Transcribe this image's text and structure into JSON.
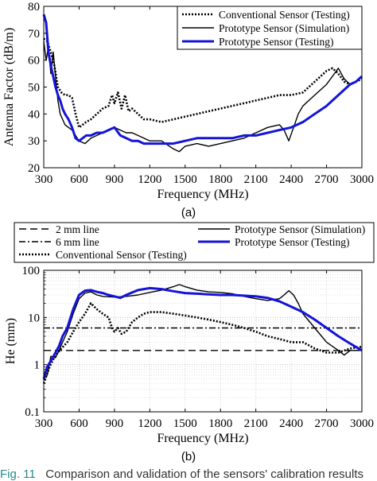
{
  "figure": {
    "sublabel_a": "(a)",
    "sublabel_b": "(b)",
    "caption_label": "Fig. 11",
    "caption_text": "Comparison and validation of the sensors' calibration results"
  },
  "colors": {
    "testing_prototype": "#1414d8",
    "other": "#000000"
  },
  "chart_data": [
    {
      "type": "line",
      "ylabel": "Antenna Factor (dB/m)",
      "xlabel": "Frequency (MHz)",
      "xlim": [
        300,
        3000
      ],
      "ylim": [
        20,
        80
      ],
      "xticks": [
        300,
        600,
        900,
        1200,
        1500,
        1800,
        2100,
        2400,
        2700,
        3000
      ],
      "yticks": [
        20,
        30,
        40,
        50,
        60,
        70,
        80
      ],
      "grid": false,
      "legend_position": "top-right",
      "series": [
        {
          "name": "Conventional Sensor (Testing)",
          "style": "dotted",
          "color": "#000000",
          "x": [
            300,
            330,
            360,
            390,
            420,
            450,
            480,
            510,
            540,
            570,
            600,
            630,
            660,
            700,
            750,
            800,
            850,
            880,
            900,
            930,
            960,
            990,
            1020,
            1050,
            1100,
            1150,
            1200,
            1300,
            1400,
            1500,
            1600,
            1700,
            1800,
            1900,
            2000,
            2100,
            2200,
            2300,
            2400,
            2500,
            2600,
            2650,
            2700,
            2750,
            2800,
            2850,
            2900,
            2950,
            3000
          ],
          "y": [
            68,
            67,
            63,
            58,
            50,
            48,
            47,
            47,
            46,
            40,
            35,
            36,
            37,
            38,
            40,
            42,
            43,
            47,
            44,
            48,
            42,
            47,
            41,
            42,
            40,
            38,
            38,
            37,
            38,
            39,
            40,
            41,
            42,
            43,
            44,
            45,
            46,
            47,
            47,
            48,
            52,
            54,
            56,
            57,
            55,
            52,
            51,
            52,
            53
          ]
        },
        {
          "name": "Prototype Sensor (Simulation)",
          "style": "solid",
          "color": "#000000",
          "x": [
            300,
            320,
            340,
            360,
            380,
            400,
            420,
            440,
            460,
            480,
            510,
            540,
            570,
            600,
            650,
            700,
            750,
            800,
            850,
            900,
            950,
            1000,
            1050,
            1100,
            1150,
            1200,
            1300,
            1400,
            1450,
            1500,
            1600,
            1700,
            1800,
            1900,
            2000,
            2100,
            2200,
            2300,
            2340,
            2380,
            2420,
            2460,
            2500,
            2600,
            2700,
            2750,
            2800,
            2850,
            2900,
            2950,
            3000
          ],
          "y": [
            67,
            60,
            65,
            55,
            63,
            54,
            45,
            40,
            38,
            36,
            35,
            34,
            32,
            30,
            29,
            31,
            32,
            33,
            34,
            35,
            34,
            33,
            33,
            32,
            31,
            30,
            30,
            27,
            26,
            28,
            29,
            28,
            29,
            30,
            31,
            33,
            35,
            36,
            34,
            30,
            35,
            40,
            43,
            47,
            51,
            54,
            57,
            53,
            51,
            52,
            54
          ]
        },
        {
          "name": "Prototype Sensor (Testing)",
          "style": "solid",
          "color": "#1414d8",
          "x": [
            300,
            320,
            340,
            360,
            380,
            400,
            420,
            440,
            460,
            480,
            510,
            540,
            570,
            600,
            630,
            660,
            700,
            750,
            800,
            850,
            900,
            950,
            1000,
            1050,
            1100,
            1150,
            1200,
            1300,
            1400,
            1500,
            1600,
            1700,
            1800,
            1900,
            2000,
            2100,
            2200,
            2300,
            2400,
            2500,
            2600,
            2700,
            2800,
            2900,
            2950,
            3000
          ],
          "y": [
            77,
            74,
            63,
            58,
            54,
            50,
            47,
            45,
            42,
            40,
            38,
            35,
            31,
            30,
            31,
            32,
            32,
            33,
            33,
            34,
            35,
            32,
            31,
            30,
            30,
            29,
            29,
            29,
            29,
            30,
            31,
            31,
            31,
            31,
            32,
            32,
            33,
            34,
            35,
            37,
            40,
            43,
            47,
            51,
            52,
            54
          ]
        }
      ]
    },
    {
      "type": "line",
      "ylabel": "He (mm)",
      "xlabel": "Frequency (MHz)",
      "yscale": "log",
      "xlim": [
        300,
        3000
      ],
      "ylim": [
        0.1,
        100
      ],
      "xticks": [
        300,
        600,
        900,
        1200,
        1500,
        1800,
        2100,
        2400,
        2700,
        3000
      ],
      "yticks": [
        0.1,
        1,
        10,
        100
      ],
      "ytick_labels": [
        "0.1",
        "1",
        "10",
        "100"
      ],
      "grid": true,
      "legend_position": "top",
      "series": [
        {
          "name": "2 mm line",
          "style": "dashed",
          "color": "#000000",
          "x": [
            300,
            3000
          ],
          "y": [
            2,
            2
          ]
        },
        {
          "name": "6 mm line",
          "style": "dashdot",
          "color": "#000000",
          "x": [
            300,
            3000
          ],
          "y": [
            6,
            6
          ]
        },
        {
          "name": "Conventional Sensor (Testing)",
          "style": "dotted",
          "color": "#000000",
          "x": [
            300,
            350,
            400,
            450,
            500,
            550,
            600,
            650,
            700,
            750,
            800,
            850,
            880,
            900,
            930,
            960,
            1000,
            1050,
            1100,
            1150,
            1200,
            1300,
            1400,
            1500,
            1600,
            1700,
            1800,
            1900,
            2000,
            2100,
            2200,
            2300,
            2400,
            2500,
            2600,
            2700,
            2800,
            2900,
            3000
          ],
          "y": [
            0.4,
            0.9,
            1.6,
            2.2,
            3,
            5,
            8,
            12,
            20,
            15,
            12,
            10,
            6,
            5,
            6,
            4.5,
            5,
            8,
            10,
            12,
            13,
            13,
            12,
            11,
            10,
            9,
            8,
            7,
            6,
            5,
            4,
            3.5,
            3,
            3,
            2.2,
            1.8,
            1.8,
            2.2,
            2.4
          ]
        },
        {
          "name": "Prototype Sensor (Simulation)",
          "style": "solid",
          "color": "#000000",
          "x": [
            300,
            330,
            360,
            400,
            430,
            460,
            500,
            550,
            600,
            650,
            700,
            750,
            800,
            900,
            1000,
            1100,
            1200,
            1300,
            1400,
            1450,
            1500,
            1600,
            1700,
            1800,
            1900,
            2000,
            2100,
            2200,
            2300,
            2340,
            2380,
            2420,
            2460,
            2500,
            2600,
            2700,
            2800,
            2850,
            2900,
            2950,
            3000
          ],
          "y": [
            0.5,
            0.6,
            1.5,
            1.4,
            2,
            3,
            5,
            12,
            25,
            33,
            35,
            30,
            28,
            27,
            28,
            30,
            34,
            38,
            45,
            50,
            45,
            38,
            35,
            34,
            32,
            28,
            25,
            23,
            25,
            30,
            37,
            30,
            20,
            12,
            6,
            3,
            2,
            1.6,
            2,
            2,
            2
          ]
        },
        {
          "name": "Prototype Sensor (Testing)",
          "style": "solid",
          "color": "#1414d8",
          "x": [
            300,
            330,
            360,
            400,
            430,
            460,
            500,
            550,
            600,
            650,
            700,
            750,
            800,
            850,
            900,
            950,
            1000,
            1100,
            1200,
            1300,
            1400,
            1500,
            1600,
            1700,
            1800,
            1900,
            2000,
            2100,
            2200,
            2300,
            2400,
            2500,
            2600,
            2700,
            2800,
            2900,
            3000
          ],
          "y": [
            0.5,
            0.9,
            1.2,
            1.8,
            2.5,
            4,
            6,
            15,
            30,
            37,
            38,
            35,
            33,
            30,
            28,
            26,
            30,
            38,
            42,
            40,
            36,
            33,
            32,
            31,
            30,
            30,
            29,
            28,
            26,
            22,
            17,
            13,
            9,
            6,
            4,
            2.8,
            2
          ]
        }
      ]
    }
  ]
}
